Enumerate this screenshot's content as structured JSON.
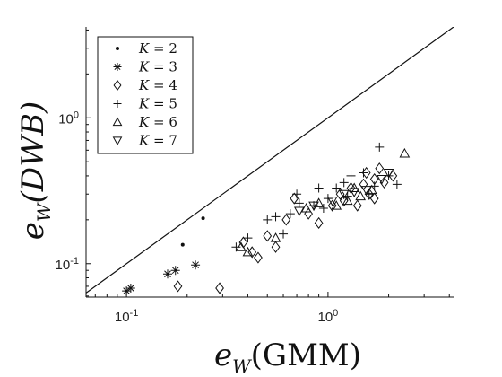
{
  "chart_data": {
    "type": "scatter",
    "title": "",
    "xlabel_main": "e",
    "xlabel_sub": "W",
    "xlabel_arg": "(GMM)",
    "ylabel_main": "e",
    "ylabel_sub": "W",
    "ylabel_arg": "(DWB)",
    "xscale": "log",
    "yscale": "log",
    "xlim": [
      0.063,
      4.2
    ],
    "ylim": [
      0.059,
      4.2
    ],
    "grid": false,
    "legend_position": "top-left",
    "reference_line": "y = x",
    "xticks": [
      {
        "value": 0.1,
        "base": "10",
        "exp": "-1"
      },
      {
        "value": 1.0,
        "base": "10",
        "exp": "0"
      }
    ],
    "yticks": [
      {
        "value": 0.1,
        "base": "10",
        "exp": "-1"
      },
      {
        "value": 1.0,
        "base": "10",
        "exp": "0"
      }
    ],
    "series": [
      {
        "name": "K = 2",
        "legend_lhs": "K",
        "legend_rhs": "= 2",
        "marker": "dot",
        "points": [
          [
            0.19,
            0.135
          ],
          [
            0.24,
            0.205
          ]
        ]
      },
      {
        "name": "K = 3",
        "legend_lhs": "K",
        "legend_rhs": "= 3",
        "marker": "asterisk",
        "points": [
          [
            0.1,
            0.065
          ],
          [
            0.105,
            0.068
          ],
          [
            0.16,
            0.085
          ],
          [
            0.175,
            0.09
          ],
          [
            0.22,
            0.098
          ]
        ]
      },
      {
        "name": "K = 4",
        "legend_lhs": "K",
        "legend_rhs": "= 4",
        "marker": "diamond",
        "points": [
          [
            0.18,
            0.07
          ],
          [
            0.29,
            0.068
          ],
          [
            0.38,
            0.14
          ],
          [
            0.42,
            0.12
          ],
          [
            0.45,
            0.11
          ],
          [
            0.5,
            0.155
          ],
          [
            0.55,
            0.13
          ],
          [
            0.62,
            0.2
          ],
          [
            0.68,
            0.28
          ],
          [
            0.8,
            0.22
          ],
          [
            0.9,
            0.19
          ],
          [
            1.05,
            0.25
          ],
          [
            1.15,
            0.3
          ],
          [
            1.2,
            0.27
          ],
          [
            1.4,
            0.25
          ],
          [
            1.5,
            0.35
          ],
          [
            1.6,
            0.3
          ],
          [
            1.7,
            0.38
          ],
          [
            1.8,
            0.45
          ],
          [
            1.9,
            0.36
          ],
          [
            1.7,
            0.28
          ],
          [
            2.1,
            0.4
          ],
          [
            1.55,
            0.42
          ],
          [
            1.3,
            0.33
          ]
        ]
      },
      {
        "name": "K = 5",
        "legend_lhs": "K",
        "legend_rhs": "= 5",
        "marker": "plus",
        "points": [
          [
            0.35,
            0.13
          ],
          [
            0.4,
            0.15
          ],
          [
            0.5,
            0.2
          ],
          [
            0.55,
            0.21
          ],
          [
            0.6,
            0.16
          ],
          [
            0.65,
            0.22
          ],
          [
            0.7,
            0.3
          ],
          [
            0.72,
            0.26
          ],
          [
            0.85,
            0.25
          ],
          [
            0.9,
            0.33
          ],
          [
            1.0,
            0.28
          ],
          [
            1.1,
            0.33
          ],
          [
            1.2,
            0.36
          ],
          [
            1.3,
            0.4
          ],
          [
            1.5,
            0.42
          ],
          [
            1.6,
            0.3
          ],
          [
            1.7,
            0.34
          ],
          [
            1.8,
            0.63
          ],
          [
            2.0,
            0.4
          ],
          [
            2.2,
            0.35
          ],
          [
            0.95,
            0.24
          ],
          [
            1.25,
            0.29
          ]
        ]
      },
      {
        "name": "K = 6",
        "legend_lhs": "K",
        "legend_rhs": "= 6",
        "marker": "triangle-up",
        "points": [
          [
            0.37,
            0.13
          ],
          [
            0.4,
            0.12
          ],
          [
            0.55,
            0.15
          ],
          [
            0.78,
            0.24
          ],
          [
            0.9,
            0.26
          ],
          [
            1.1,
            0.25
          ],
          [
            1.25,
            0.27
          ],
          [
            1.45,
            0.29
          ],
          [
            1.65,
            0.32
          ],
          [
            2.4,
            0.57
          ],
          [
            1.35,
            0.33
          ]
        ]
      },
      {
        "name": "K = 7",
        "legend_lhs": "K",
        "legend_rhs": "= 7",
        "marker": "triangle-down",
        "points": [
          [
            0.85,
            0.25
          ],
          [
            1.05,
            0.27
          ],
          [
            1.2,
            0.3
          ],
          [
            1.35,
            0.31
          ],
          [
            1.55,
            0.32
          ],
          [
            1.85,
            0.38
          ],
          [
            2.0,
            0.42
          ],
          [
            0.72,
            0.23
          ]
        ]
      }
    ]
  }
}
